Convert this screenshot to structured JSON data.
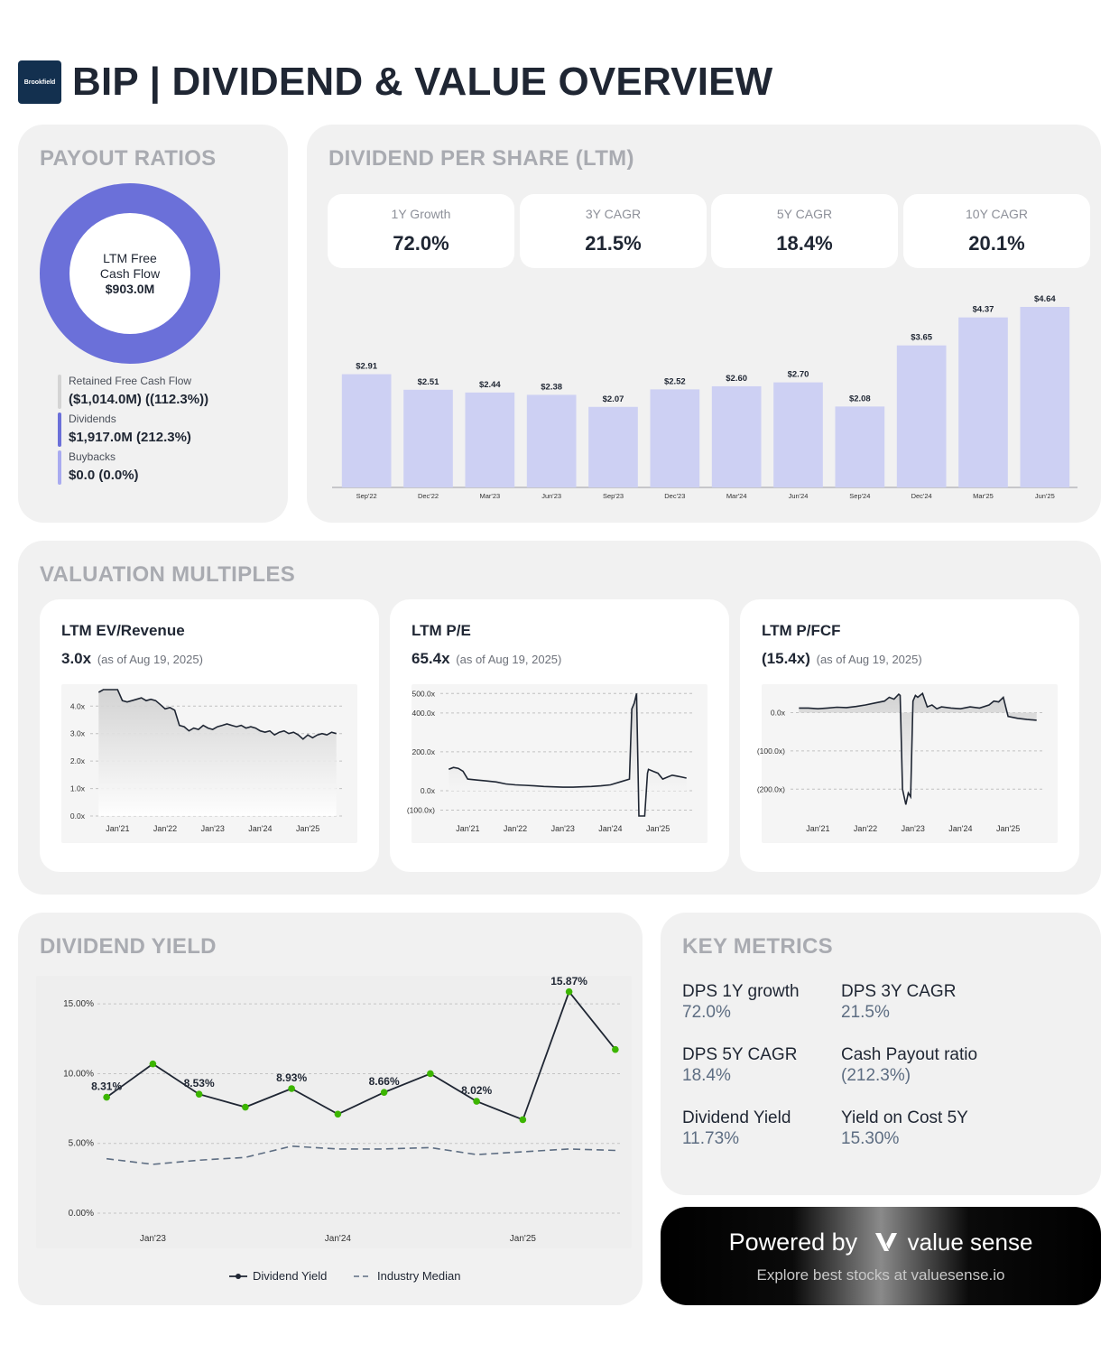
{
  "header": {
    "logo_text": "Brookfield",
    "title": "BIP | DIVIDEND & VALUE OVERVIEW"
  },
  "payout": {
    "title": "PAYOUT RATIOS",
    "donut_line1": "LTM Free",
    "donut_line2": "Cash Flow",
    "donut_value": "$903.0M",
    "donut_color": "#6b70d9",
    "legend": [
      {
        "label": "Retained Free Cash Flow",
        "value": "($1,014.0M) ((112.3%))",
        "color": "#d4d4d4"
      },
      {
        "label": "Dividends",
        "value": "$1,917.0M (212.3%)",
        "color": "#6b70d9"
      },
      {
        "label": "Buybacks",
        "value": "$0.0 (0.0%)",
        "color": "#a9abf0"
      }
    ]
  },
  "dps": {
    "title": "DIVIDEND PER SHARE (LTM)",
    "stats": [
      {
        "label": "1Y Growth",
        "value": "72.0%"
      },
      {
        "label": "3Y CAGR",
        "value": "21.5%"
      },
      {
        "label": "5Y CAGR",
        "value": "18.4%"
      },
      {
        "label": "10Y CAGR",
        "value": "20.1%"
      }
    ]
  },
  "valuation": {
    "title": "VALUATION MULTIPLES",
    "cards": [
      {
        "title": "LTM EV/Revenue",
        "value": "3.0x",
        "asof": "(as of Aug 19, 2025)"
      },
      {
        "title": "LTM P/E",
        "value": "65.4x",
        "asof": "(as of Aug 19, 2025)"
      },
      {
        "title": "LTM P/FCF",
        "value": "(15.4x)",
        "asof": "(as of Aug 19, 2025)"
      }
    ]
  },
  "yield_panel": {
    "title": "DIVIDEND YIELD"
  },
  "metrics": {
    "title": "KEY METRICS",
    "items": [
      {
        "label": "DPS 1Y growth",
        "value": "72.0%"
      },
      {
        "label": "DPS 3Y CAGR",
        "value": "21.5%"
      },
      {
        "label": "DPS 5Y CAGR",
        "value": "18.4%"
      },
      {
        "label": "Cash Payout ratio",
        "value": "(212.3%)"
      },
      {
        "label": "Dividend Yield",
        "value": "11.73%"
      },
      {
        "label": "Yield on Cost 5Y",
        "value": "15.30%"
      }
    ]
  },
  "powered": {
    "prefix": "Powered by",
    "brand": "value sense",
    "tagline": "Explore best stocks at valuesense.io"
  },
  "colors": {
    "bar": "#cdd0f3",
    "line": "#1f2633",
    "dot": "#3cb500",
    "median": "#5d6d82"
  },
  "chart_data": [
    {
      "id": "dps_ltm",
      "type": "bar",
      "categories": [
        "Sep'22",
        "Dec'22",
        "Mar'23",
        "Jun'23",
        "Sep'23",
        "Dec'23",
        "Mar'24",
        "Jun'24",
        "Sep'24",
        "Dec'24",
        "Mar'25",
        "Jun'25"
      ],
      "values": [
        2.91,
        2.51,
        2.44,
        2.38,
        2.07,
        2.52,
        2.6,
        2.7,
        2.08,
        3.65,
        4.37,
        4.64
      ],
      "labels": [
        "$2.91",
        "$2.51",
        "$2.44",
        "$2.38",
        "$2.07",
        "$2.52",
        "$2.60",
        "$2.70",
        "$2.08",
        "$3.65",
        "$4.37",
        "$4.64"
      ],
      "ylim": [
        0,
        4.64
      ]
    },
    {
      "id": "ev_revenue",
      "type": "area",
      "x_ticks": [
        "Jan'21",
        "Jan'22",
        "Jan'23",
        "Jan'24",
        "Jan'25"
      ],
      "y_ticks": [
        "0.0x",
        "1.0x",
        "2.0x",
        "3.0x",
        "4.0x"
      ],
      "ylim": [
        0,
        4.6
      ],
      "x": [
        2020.6,
        2020.7,
        2020.8,
        2020.9,
        2021.0,
        2021.1,
        2021.2,
        2021.3,
        2021.4,
        2021.5,
        2021.6,
        2021.7,
        2021.8,
        2021.9,
        2022.0,
        2022.1,
        2022.2,
        2022.3,
        2022.4,
        2022.5,
        2022.6,
        2022.7,
        2022.8,
        2022.9,
        2023.0,
        2023.1,
        2023.2,
        2023.3,
        2023.4,
        2023.5,
        2023.6,
        2023.7,
        2023.8,
        2023.9,
        2024.0,
        2024.1,
        2024.2,
        2024.3,
        2024.4,
        2024.5,
        2024.6,
        2024.7,
        2024.8,
        2024.9,
        2025.0,
        2025.1,
        2025.2,
        2025.3,
        2025.4,
        2025.5,
        2025.6
      ],
      "y": [
        4.5,
        4.6,
        4.7,
        4.65,
        4.6,
        4.2,
        4.15,
        4.2,
        4.25,
        4.3,
        4.2,
        4.25,
        4.2,
        4.05,
        3.9,
        3.95,
        3.85,
        3.3,
        3.25,
        3.1,
        3.2,
        3.15,
        3.3,
        3.2,
        3.15,
        3.25,
        3.3,
        3.35,
        3.3,
        3.25,
        3.3,
        3.2,
        3.25,
        3.2,
        3.1,
        3.05,
        3.1,
        2.95,
        3.05,
        3.1,
        3.0,
        3.05,
        2.95,
        2.8,
        2.95,
        2.85,
        2.95,
        3.0,
        2.95,
        3.05,
        3.0
      ]
    },
    {
      "id": "pe",
      "type": "line",
      "x_ticks": [
        "Jan'21",
        "Jan'22",
        "Jan'23",
        "Jan'24",
        "Jan'25"
      ],
      "y_ticks": [
        "(100.0x)",
        "0.0x",
        "200.0x",
        "400.0x",
        "500.0x"
      ],
      "ylim": [
        -130,
        520
      ],
      "x": [
        2020.6,
        2020.7,
        2020.8,
        2020.9,
        2021.0,
        2021.2,
        2021.4,
        2021.6,
        2021.8,
        2022.0,
        2022.2,
        2022.4,
        2022.6,
        2022.8,
        2023.0,
        2023.2,
        2023.4,
        2023.6,
        2023.8,
        2024.0,
        2024.2,
        2024.4,
        2024.45,
        2024.5,
        2024.55,
        2024.6,
        2024.65,
        2024.7,
        2024.72,
        2024.78,
        2024.8,
        2024.9,
        2025.0,
        2025.1,
        2025.2,
        2025.3,
        2025.4,
        2025.5,
        2025.6
      ],
      "y": [
        110,
        120,
        115,
        100,
        60,
        55,
        50,
        45,
        35,
        30,
        28,
        25,
        22,
        20,
        18,
        18,
        20,
        22,
        25,
        30,
        45,
        60,
        420,
        450,
        500,
        -200,
        -220,
        -210,
        -180,
        90,
        110,
        100,
        90,
        60,
        70,
        80,
        75,
        70,
        65
      ]
    },
    {
      "id": "pfcf",
      "type": "line",
      "x_ticks": [
        "Jan'21",
        "Jan'22",
        "Jan'23",
        "Jan'24",
        "Jan'25"
      ],
      "y_ticks": [
        "0.0x",
        "(100.0x)",
        "(200.0x)"
      ],
      "ylim": [
        -270,
        60
      ],
      "x": [
        2020.6,
        2020.8,
        2021.0,
        2021.2,
        2021.4,
        2021.6,
        2021.8,
        2022.0,
        2022.2,
        2022.4,
        2022.5,
        2022.6,
        2022.7,
        2022.73,
        2022.78,
        2022.85,
        2022.9,
        2022.95,
        2023.0,
        2023.05,
        2023.1,
        2023.2,
        2023.3,
        2023.4,
        2023.5,
        2023.6,
        2023.8,
        2024.0,
        2024.2,
        2024.4,
        2024.6,
        2024.7,
        2024.8,
        2024.9,
        2025.0,
        2025.2,
        2025.4,
        2025.6
      ],
      "y": [
        12,
        12,
        10,
        12,
        14,
        13,
        16,
        20,
        25,
        30,
        40,
        35,
        48,
        45,
        -200,
        -240,
        -210,
        -220,
        30,
        45,
        40,
        50,
        15,
        20,
        10,
        15,
        12,
        10,
        15,
        12,
        20,
        30,
        28,
        40,
        -10,
        -15,
        -18,
        -20
      ]
    },
    {
      "id": "dividend_yield",
      "type": "line",
      "x_ticks": [
        "Jan'23",
        "Jan'24",
        "Jan'25"
      ],
      "y_ticks": [
        "0.00%",
        "5.00%",
        "10.00%",
        "15.00%"
      ],
      "ylim": [
        0,
        16.5
      ],
      "series": [
        {
          "name": "Dividend Yield",
          "x": [
            2022.75,
            2023.0,
            2023.25,
            2023.5,
            2023.75,
            2024.0,
            2024.25,
            2024.5,
            2024.75,
            2025.0,
            2025.25,
            2025.5
          ],
          "y": [
            8.31,
            10.7,
            8.53,
            7.6,
            8.93,
            7.1,
            8.66,
            10.0,
            8.02,
            6.7,
            15.87,
            11.73
          ],
          "labels": [
            "8.31%",
            "",
            "8.53%",
            "",
            "8.93%",
            "",
            "8.66%",
            "",
            "8.02%",
            "",
            "15.87%",
            ""
          ]
        },
        {
          "name": "Industry Median",
          "x": [
            2022.75,
            2023.0,
            2023.25,
            2023.5,
            2023.75,
            2024.0,
            2024.25,
            2024.5,
            2024.75,
            2025.0,
            2025.25,
            2025.5
          ],
          "y": [
            3.9,
            3.5,
            3.8,
            4.0,
            4.8,
            4.6,
            4.6,
            4.7,
            4.2,
            4.4,
            4.6,
            4.5
          ]
        }
      ]
    }
  ]
}
